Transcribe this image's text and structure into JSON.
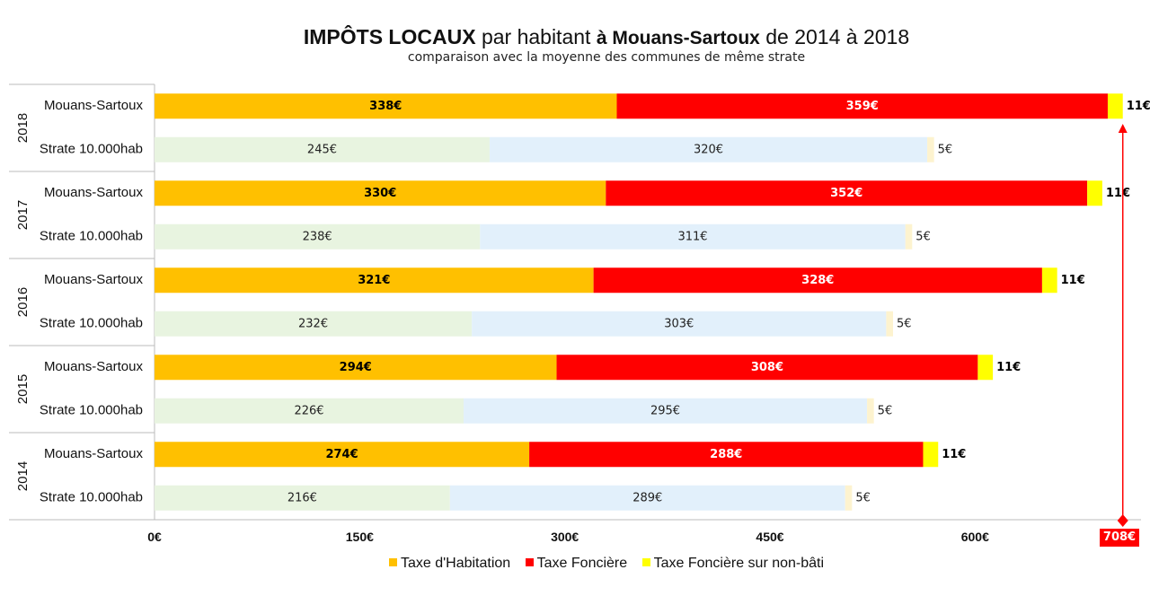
{
  "title": {
    "part1": "IMPÔTS LOCAUX",
    "part2": "par habitant",
    "part3": "à Mouans-Sartoux",
    "part4": "de 2014 à 2018"
  },
  "subtitle": "comparaison avec la moyenne des communes de même strate",
  "total_marker": "708€",
  "colors": {
    "habitation": "#ffc000",
    "fonciere": "#ff0000",
    "nonbati": "#ffff00",
    "strate_habitation": "#e8f4e0",
    "strate_fonciere": "#e2f0fb",
    "strate_nonbati": "#fdf3cf",
    "marker": "#ff0000",
    "grid": "#bbbbbb"
  },
  "legend": [
    {
      "label": "Taxe d'Habitation",
      "color": "#ffc000"
    },
    {
      "label": "Taxe Foncière",
      "color": "#ff0000"
    },
    {
      "label": "Taxe Foncière sur non-bâti",
      "color": "#ffff00"
    }
  ],
  "chart_data": {
    "type": "bar",
    "orientation": "horizontal",
    "stacked": true,
    "xlim": [
      0,
      720
    ],
    "xticks": [
      0,
      150,
      300,
      450,
      600
    ],
    "xtick_labels": [
      "0€",
      "150€",
      "300€",
      "450€",
      "600€"
    ],
    "groups": [
      {
        "year": "2018",
        "rows": [
          {
            "label": "Mouans-Sartoux",
            "kind": "commune",
            "values": [
              338,
              359,
              11
            ],
            "labels": [
              "338€",
              "359€",
              "11€"
            ]
          },
          {
            "label": "Strate 10.000hab",
            "kind": "strate",
            "values": [
              245,
              320,
              5
            ],
            "labels": [
              "245€",
              "320€",
              "5€"
            ]
          }
        ]
      },
      {
        "year": "2017",
        "rows": [
          {
            "label": "Mouans-Sartoux",
            "kind": "commune",
            "values": [
              330,
              352,
              11
            ],
            "labels": [
              "330€",
              "352€",
              "11€"
            ]
          },
          {
            "label": "Strate 10.000hab",
            "kind": "strate",
            "values": [
              238,
              311,
              5
            ],
            "labels": [
              "238€",
              "311€",
              "5€"
            ]
          }
        ]
      },
      {
        "year": "2016",
        "rows": [
          {
            "label": "Mouans-Sartoux",
            "kind": "commune",
            "values": [
              321,
              328,
              11
            ],
            "labels": [
              "321€",
              "328€",
              "11€"
            ]
          },
          {
            "label": "Strate 10.000hab",
            "kind": "strate",
            "values": [
              232,
              303,
              5
            ],
            "labels": [
              "232€",
              "303€",
              "5€"
            ]
          }
        ]
      },
      {
        "year": "2015",
        "rows": [
          {
            "label": "Mouans-Sartoux",
            "kind": "commune",
            "values": [
              294,
              308,
              11
            ],
            "labels": [
              "294€",
              "308€",
              "11€"
            ]
          },
          {
            "label": "Strate 10.000hab",
            "kind": "strate",
            "values": [
              226,
              295,
              5
            ],
            "labels": [
              "226€",
              "295€",
              "5€"
            ]
          }
        ]
      },
      {
        "year": "2014",
        "rows": [
          {
            "label": "Mouans-Sartoux",
            "kind": "commune",
            "values": [
              274,
              288,
              11
            ],
            "labels": [
              "274€",
              "288€",
              "11€"
            ]
          },
          {
            "label": "Strate 10.000hab",
            "kind": "strate",
            "values": [
              216,
              289,
              5
            ],
            "labels": [
              "216€",
              "289€",
              "5€"
            ]
          }
        ]
      }
    ]
  }
}
